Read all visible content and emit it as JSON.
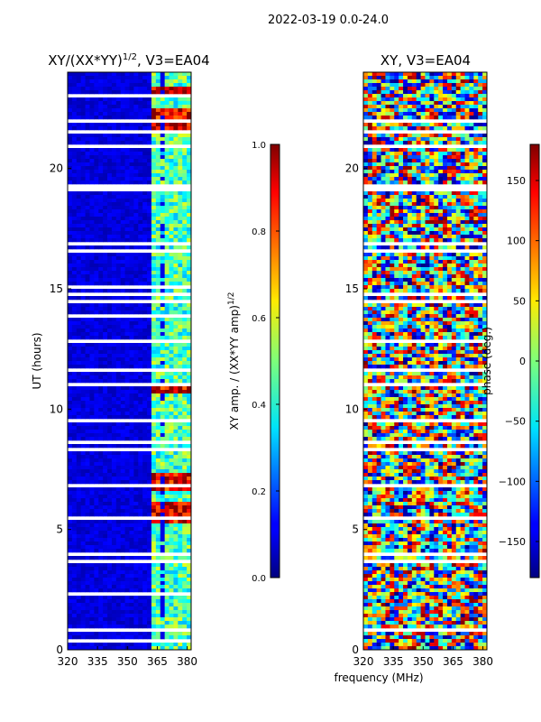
{
  "figure_title": "2022-03-19 0.0-24.0",
  "chart_data": [
    {
      "type": "heatmap",
      "title": "XY/(XX*YY)$^{1/2}$, V3=EA04",
      "title_text": "XY/(XX*YY)",
      "title_exp": "1/2",
      "title_suffix": ", V3=EA04",
      "xlabel": "",
      "ylabel": "UT (hours)",
      "xlim": [
        320,
        382
      ],
      "ylim": [
        0,
        24
      ],
      "xticks": [
        "320",
        "335",
        "350",
        "365",
        "380"
      ],
      "xtick_values": [
        320,
        335,
        350,
        365,
        380
      ],
      "yticks": [
        "0",
        "5",
        "10",
        "15",
        "20"
      ],
      "ytick_values": [
        0,
        5,
        10,
        15,
        20
      ],
      "colorbar": {
        "label": "XY amp. / (XX*YY amp)$^{1/2}$",
        "label_text": "XY amp. / (XX*YY amp)",
        "label_exp": "1/2",
        "range": [
          0.0,
          1.0
        ],
        "ticks": [
          "0.0",
          "0.2",
          "0.4",
          "0.6",
          "0.8",
          "1.0"
        ],
        "tick_values": [
          0.0,
          0.2,
          0.4,
          0.6,
          0.8,
          1.0
        ]
      },
      "colormap": "jet",
      "description_values": {
        "background_level": 0.05,
        "band_level_365_380MHz": 0.45,
        "peak_level": 0.9,
        "high_amplitude_hours": [
          5.5,
          6.0,
          6.9,
          7.1,
          10.8,
          21.8,
          22.3,
          23.1
        ]
      }
    },
    {
      "type": "heatmap",
      "title": "XY, V3=EA04",
      "xlabel": "frequency (MHz)",
      "ylabel": "",
      "xlim": [
        320,
        382
      ],
      "ylim": [
        0,
        24
      ],
      "xticks": [
        "320",
        "335",
        "350",
        "365",
        "380"
      ],
      "xtick_values": [
        320,
        335,
        350,
        365,
        380
      ],
      "yticks": [
        "0",
        "5",
        "10",
        "15",
        "20"
      ],
      "ytick_values": [
        0,
        5,
        10,
        15,
        20
      ],
      "colorbar": {
        "label": "phase (deg.)",
        "range": [
          -180,
          180
        ],
        "ticks": [
          "−150",
          "−100",
          "−50",
          "0",
          "50",
          "100",
          "150"
        ],
        "tick_values": [
          -150,
          -100,
          -50,
          0,
          50,
          100,
          150
        ]
      },
      "colormap": "jet"
    }
  ]
}
